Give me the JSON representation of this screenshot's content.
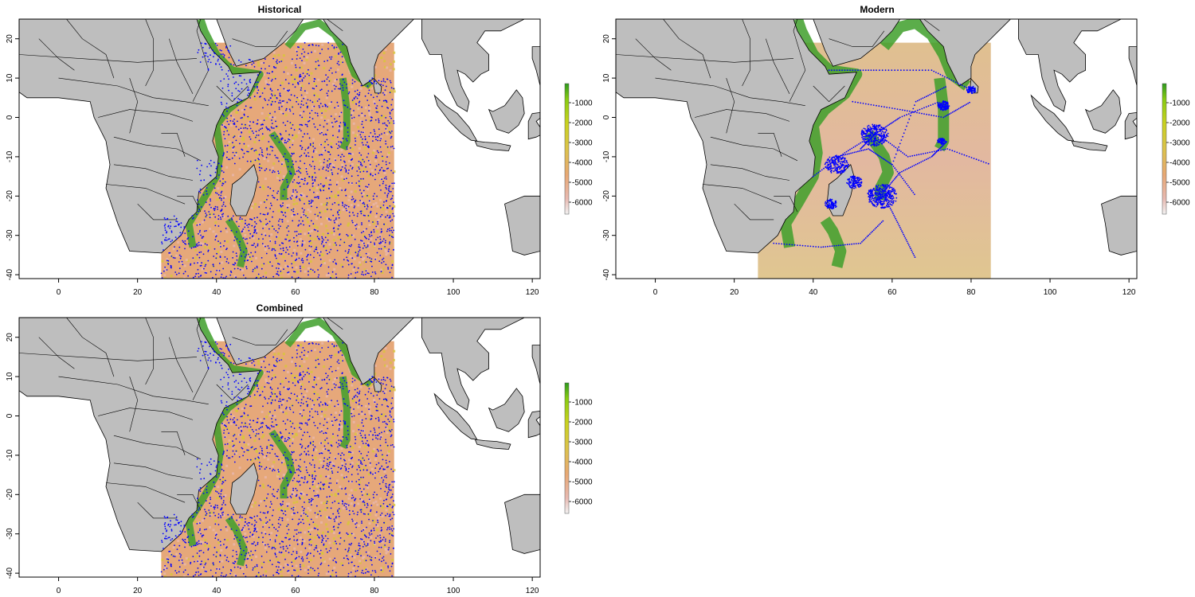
{
  "colors": {
    "land": "#bebebe",
    "ocean_outside": "#ffffff",
    "border": "#000000",
    "points": "#0000ff",
    "depth_ramp": [
      "#f2f2f2",
      "#e8b9b1",
      "#e8a874",
      "#dcc34a",
      "#c8d21e",
      "#88cc11",
      "#2d9a1e"
    ]
  },
  "panels": [
    {
      "id": "historical",
      "title": "Historical",
      "xticks": [
        "0",
        "20",
        "40",
        "60",
        "80",
        "100",
        "120"
      ],
      "yticks": [
        "20",
        "10",
        "0",
        "-10",
        "-20",
        "-30",
        "-40"
      ],
      "legend_labels": [
        "-1000",
        "-2000",
        "-3000",
        "-4000",
        "-5000",
        "-6000"
      ],
      "points_pattern": "dense-uniform"
    },
    {
      "id": "modern",
      "title": "Modern",
      "xticks": [
        "0",
        "20",
        "40",
        "60",
        "80",
        "100",
        "120"
      ],
      "yticks": [
        "20",
        "10",
        "0",
        "-10",
        "-20",
        "-30",
        "-40"
      ],
      "legend_labels": [
        "-1000",
        "-2000",
        "-3000",
        "-4000",
        "-5000",
        "-6000"
      ],
      "points_pattern": "tracks-and-clusters"
    },
    {
      "id": "combined",
      "title": "Combined",
      "xticks": [
        "0",
        "20",
        "40",
        "60",
        "80",
        "100",
        "120"
      ],
      "yticks": [
        "20",
        "10",
        "0",
        "-10",
        "-20",
        "-30",
        "-40"
      ],
      "legend_labels": [
        "-1000",
        "-2000",
        "-3000",
        "-4000",
        "-5000",
        "-6000"
      ],
      "points_pattern": "dense-uniform"
    }
  ]
}
